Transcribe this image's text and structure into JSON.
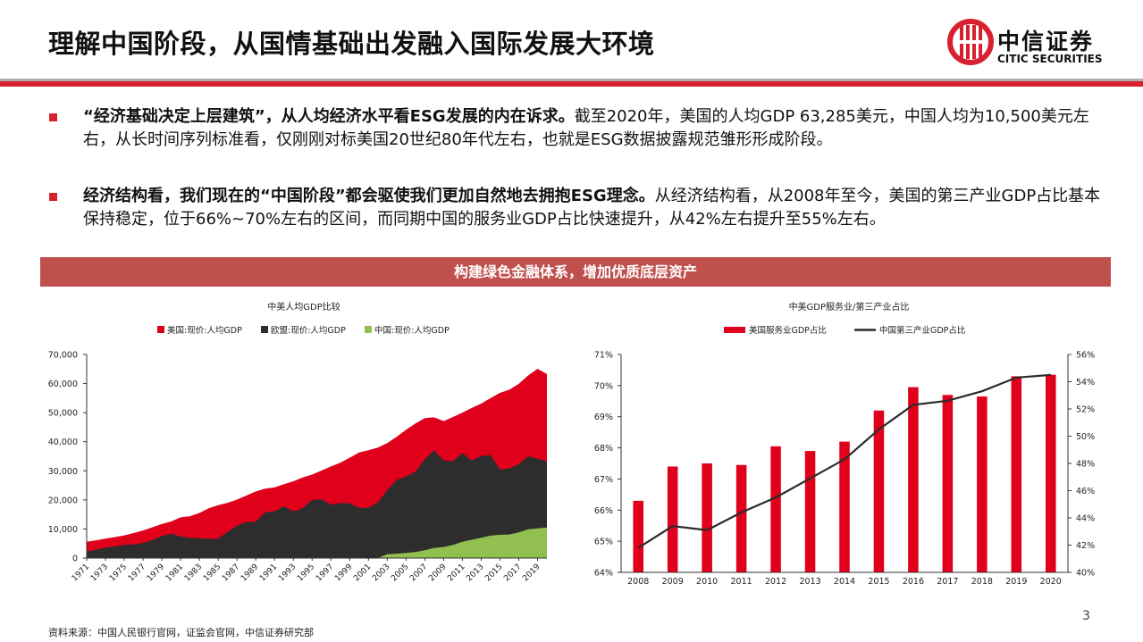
{
  "page": {
    "title": "理解中国阶段，从国情基础出发融入国际发展大环境",
    "logo_cn": "中信证券",
    "logo_en": "CITIC SECURITIES",
    "banner": "构建绿色金融体系，增加优质底层资产",
    "source": "资料来源：中国人民银行官网，证监会官网，中信证券研究部",
    "page_number": "3",
    "brand_red": "#d9202f"
  },
  "bullets": [
    {
      "bold": "“经济基础决定上层建筑”，从人均经济水平看ESG发展的内在诉求。",
      "text": "截至2020年，美国的人均GDP 63,285美元，中国人均为10,500美元左右，从长时间序列标准看，仅刚刚对标美国20世纪80年代左右，也就是ESG数据披露规范雏形形成阶段。"
    },
    {
      "bold": "经济结构看，我们现在的“中国阶段”都会驱使我们更加自然地去拥抱ESG理念。",
      "text": "从经济结构看，从2008年至今，美国的第三产业GDP占比基本保持稳定，位于66%~70%左右的区间，而同期中国的服务业GDP占比快速提升，从42%左右提升至55%左右。"
    }
  ],
  "chart_data": [
    {
      "type": "area",
      "title": "中美人均GDP比较",
      "legend_position": "top",
      "x": [
        1971,
        1972,
        1973,
        1974,
        1975,
        1976,
        1977,
        1978,
        1979,
        1980,
        1981,
        1982,
        1983,
        1984,
        1985,
        1986,
        1987,
        1988,
        1989,
        1990,
        1991,
        1992,
        1993,
        1994,
        1995,
        1996,
        1997,
        1998,
        1999,
        2000,
        2001,
        2002,
        2003,
        2004,
        2005,
        2006,
        2007,
        2008,
        2009,
        2010,
        2011,
        2012,
        2013,
        2014,
        2015,
        2016,
        2017,
        2018,
        2019,
        2020
      ],
      "x_tick_labels": [
        "1971",
        "1973",
        "1975",
        "1977",
        "1979",
        "1981",
        "1983",
        "1985",
        "1987",
        "1989",
        "1991",
        "1993",
        "1995",
        "1997",
        "1999",
        "2001",
        "2003",
        "2005",
        "2007",
        "2009",
        "2011",
        "2013",
        "2015",
        "2017",
        "2019"
      ],
      "ylim": [
        0,
        70000
      ],
      "y_tick_labels": [
        "0",
        "10,000",
        "20,000",
        "30,000",
        "40,000",
        "50,000",
        "60,000",
        "70,000"
      ],
      "series": [
        {
          "name": "美国:现价:人均GDP",
          "color": "#e0001b",
          "values": [
            5600,
            6100,
            6700,
            7200,
            7800,
            8600,
            9500,
            10600,
            11700,
            12600,
            14000,
            14400,
            15500,
            17100,
            18200,
            19000,
            20100,
            21500,
            22900,
            23900,
            24300,
            25400,
            26400,
            27700,
            28700,
            30100,
            31500,
            32800,
            34500,
            36300,
            37100,
            38000,
            39500,
            41700,
            44100,
            46300,
            48100,
            48400,
            47100,
            48500,
            50000,
            51600,
            53100,
            55000,
            56800,
            57900,
            59900,
            62800,
            65100,
            63285
          ]
        },
        {
          "name": "欧盟:现价:人均GDP",
          "color": "#2d2d2d",
          "values": [
            2300,
            2800,
            3600,
            4000,
            4500,
            4700,
            5200,
            6200,
            7600,
            8400,
            7400,
            7000,
            6800,
            6600,
            6700,
            9000,
            11100,
            12400,
            12500,
            15700,
            16100,
            17800,
            16100,
            17100,
            20000,
            20200,
            18400,
            18900,
            18800,
            17300,
            17300,
            19200,
            23300,
            26900,
            28000,
            29700,
            34000,
            37000,
            33600,
            33300,
            36100,
            33600,
            35100,
            35400,
            30500,
            30800,
            32300,
            35000,
            34200,
            33200
          ]
        },
        {
          "name": "中国:现价:人均GDP",
          "color": "#92c050",
          "values": [
            0,
            0,
            0,
            0,
            0,
            0,
            0,
            0,
            0,
            0,
            0,
            0,
            0,
            0,
            0,
            0,
            0,
            0,
            0,
            0,
            0,
            0,
            0,
            0,
            0,
            0,
            0,
            0,
            0,
            0,
            0,
            0,
            1300,
            1500,
            1750,
            2100,
            2700,
            3500,
            3800,
            4500,
            5600,
            6300,
            7000,
            7700,
            8000,
            8100,
            8800,
            9900,
            10200,
            10500
          ]
        }
      ]
    },
    {
      "type": "bar",
      "title": "中美GDP服务业/第三产业占比",
      "legend_position": "top",
      "categories": [
        "2008",
        "2009",
        "2010",
        "2011",
        "2012",
        "2013",
        "2014",
        "2015",
        "2016",
        "2017",
        "2018",
        "2019",
        "2020"
      ],
      "ylim": [
        64,
        71
      ],
      "y_tick_labels": [
        "64%",
        "65%",
        "66%",
        "67%",
        "68%",
        "69%",
        "70%",
        "71%"
      ],
      "y2lim": [
        40,
        56
      ],
      "y2_tick_labels": [
        "40%",
        "42%",
        "44%",
        "46%",
        "48%",
        "50%",
        "52%",
        "54%",
        "56%"
      ],
      "series": [
        {
          "name": "美国服务业GDP占比",
          "kind": "bar",
          "axis": "left",
          "color": "#e0001b",
          "values": [
            66.3,
            67.4,
            67.5,
            67.45,
            68.05,
            67.9,
            68.2,
            69.2,
            69.95,
            69.7,
            69.65,
            70.3,
            70.35
          ]
        },
        {
          "name": "中国第三产业GDP占比",
          "kind": "line",
          "axis": "right",
          "color": "#2b2b2b",
          "values": [
            41.8,
            43.4,
            43.1,
            44.4,
            45.5,
            46.9,
            48.3,
            50.5,
            52.3,
            52.6,
            53.3,
            54.3,
            54.5
          ]
        }
      ]
    }
  ]
}
